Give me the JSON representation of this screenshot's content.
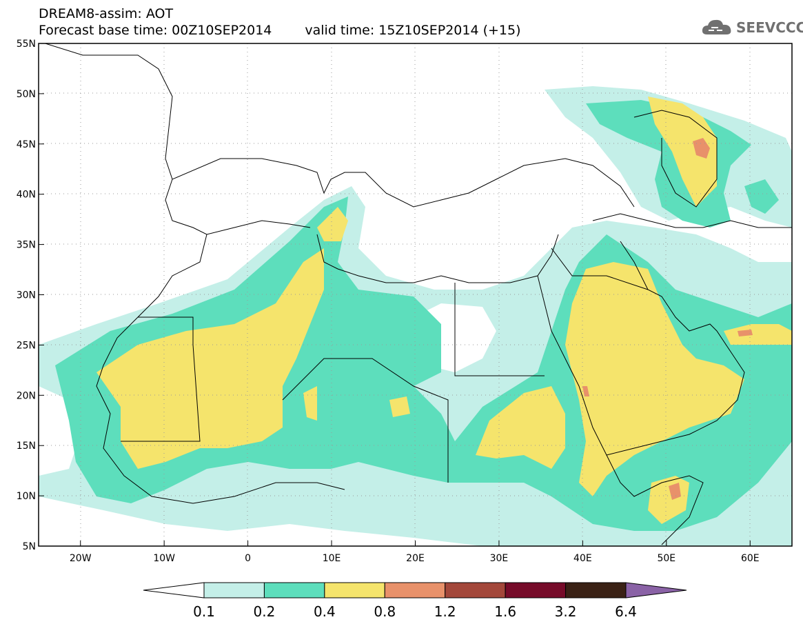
{
  "header": {
    "line1": "DREAM8-assim: AOT",
    "base_time": "Forecast base time: 00Z10SEP2014",
    "valid_time": "valid time: 15Z10SEP2014 (+15)"
  },
  "logo": {
    "text": "SEEVCCC",
    "icon": "cloud-logo-icon"
  },
  "map": {
    "extent": {
      "lon_min": -25,
      "lon_max": 65,
      "lat_min": 5,
      "lat_max": 55
    },
    "lat_ticks": [
      "5N",
      "10N",
      "15N",
      "20N",
      "25N",
      "30N",
      "35N",
      "40N",
      "45N",
      "50N",
      "55N"
    ],
    "lon_ticks": [
      "20W",
      "10W",
      "0",
      "10E",
      "20E",
      "30E",
      "40E",
      "50E",
      "60E"
    ],
    "lat_values": [
      5,
      10,
      15,
      20,
      25,
      30,
      35,
      40,
      45,
      50,
      55
    ],
    "lon_values": [
      -20,
      -10,
      0,
      10,
      20,
      30,
      40,
      50,
      60
    ],
    "grid": "dotted"
  },
  "colorbar": {
    "labels": [
      "0.1",
      "0.2",
      "0.4",
      "0.8",
      "1.2",
      "1.6",
      "3.2",
      "6.4"
    ],
    "colors": [
      "#ffffff",
      "#c4efe8",
      "#5ddebc",
      "#f5e46c",
      "#e8916a",
      "#a3473a",
      "#760b29",
      "#3a2115",
      "#8a62a6"
    ]
  }
}
